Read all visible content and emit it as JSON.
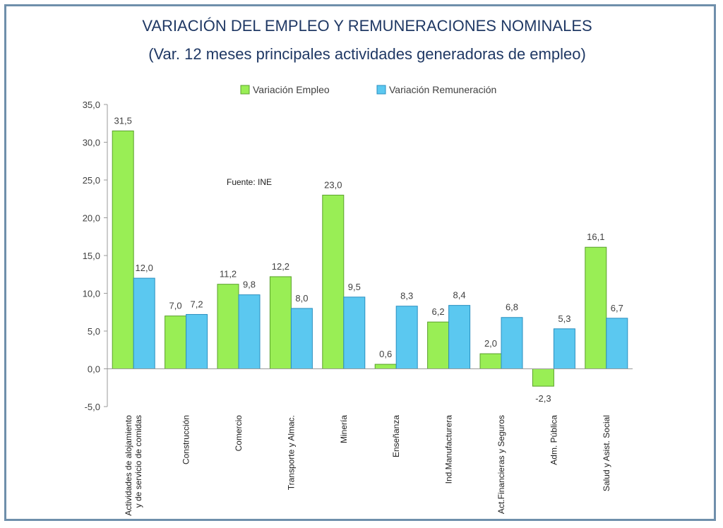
{
  "chart_data": {
    "type": "bar",
    "title": "VARIACIÓN DEL EMPLEO Y REMUNERACIONES NOMINALES",
    "subtitle": "(Var. 12 meses principales actividades generadoras de empleo)",
    "note": "Fuente: INE",
    "categories": [
      [
        "Actividades de alojamiento",
        "y de servicio de comidas"
      ],
      [
        "Construcción"
      ],
      [
        "Comercio"
      ],
      [
        "Transporte y Almac."
      ],
      [
        "Minería"
      ],
      [
        "Enseñanza"
      ],
      [
        "Ind.Manufacturera"
      ],
      [
        "Act.Financieras y Seguros"
      ],
      [
        "Adm. Pública"
      ],
      [
        "Salud y Asist. Social"
      ]
    ],
    "series": [
      {
        "name": "Variación Empleo",
        "color": "#99ee55",
        "stroke": "#5aa02c",
        "values": [
          31.5,
          7.0,
          11.2,
          12.2,
          23.0,
          0.6,
          6.2,
          2.0,
          -2.3,
          16.1
        ],
        "labels": [
          "31,5",
          "7,0",
          "11,2",
          "12,2",
          "23,0",
          "0,6",
          "6,2",
          "2,0",
          "-2,3",
          "16,1"
        ]
      },
      {
        "name": "Variación Remuneración",
        "color": "#5bc8f0",
        "stroke": "#2a8fc0",
        "values": [
          12.0,
          7.2,
          9.8,
          8.0,
          9.5,
          8.3,
          8.4,
          6.8,
          5.3,
          6.7
        ],
        "labels": [
          "12,0",
          "7,2",
          "9,8",
          "8,0",
          "9,5",
          "8,3",
          "8,4",
          "6,8",
          "5,3",
          "6,7"
        ]
      }
    ],
    "ylim": [
      -5,
      35
    ],
    "yticks": [
      -5,
      0,
      5,
      10,
      15,
      20,
      25,
      30,
      35
    ],
    "ytick_labels": [
      "-5,0",
      "0,0",
      "5,0",
      "10,0",
      "15,0",
      "20,0",
      "25,0",
      "30,0",
      "35,0"
    ],
    "legend": "top-center",
    "grid": false
  }
}
